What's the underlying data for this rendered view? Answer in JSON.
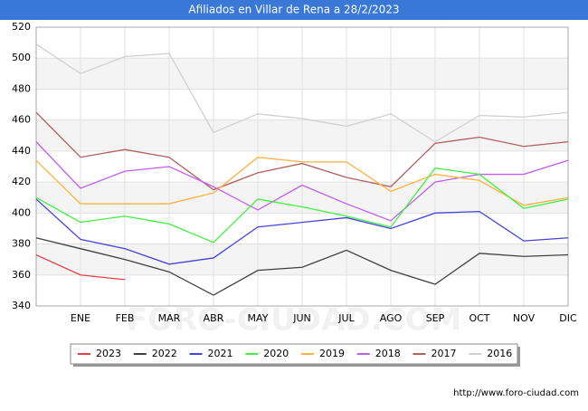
{
  "chart_data": {
    "type": "line",
    "title": "Afiliados en Villar de Rena a 28/2/2023",
    "categories": [
      null,
      "ENE",
      "FEB",
      "MAR",
      "ABR",
      "MAY",
      "JUN",
      "JUL",
      "AGO",
      "SEP",
      "OCT",
      "NOV",
      "DIC"
    ],
    "series": [
      {
        "name": "2023",
        "color": "#e84040",
        "values": [
          373,
          360,
          357,
          null,
          null,
          null,
          null,
          null,
          null,
          null,
          null,
          null,
          null
        ]
      },
      {
        "name": "2022",
        "color": "#404040",
        "values": [
          384,
          377,
          370,
          362,
          347,
          363,
          365,
          376,
          363,
          354,
          374,
          372,
          373
        ]
      },
      {
        "name": "2021",
        "color": "#4444dd",
        "values": [
          409,
          383,
          377,
          367,
          371,
          391,
          394,
          397,
          390,
          400,
          401,
          382,
          384
        ]
      },
      {
        "name": "2020",
        "color": "#44ee44",
        "values": [
          410,
          394,
          398,
          393,
          381,
          409,
          404,
          398,
          391,
          429,
          425,
          403,
          409
        ]
      },
      {
        "name": "2019",
        "color": "#ffb040",
        "values": [
          434,
          406,
          406,
          406,
          413,
          436,
          433,
          433,
          414,
          425,
          421,
          405,
          410
        ]
      },
      {
        "name": "2018",
        "color": "#c060ee",
        "values": [
          446,
          416,
          427,
          430,
          417,
          402,
          418,
          406,
          395,
          420,
          425,
          425,
          434
        ]
      },
      {
        "name": "2017",
        "color": "#b06060",
        "values": [
          465,
          436,
          441,
          436,
          415,
          426,
          432,
          423,
          417,
          445,
          449,
          443,
          446
        ]
      },
      {
        "name": "2016",
        "color": "#d0d0d0",
        "values": [
          509,
          490,
          501,
          503,
          452,
          464,
          461,
          456,
          464,
          446,
          463,
          462,
          465
        ]
      }
    ],
    "ylim": [
      340,
      520
    ],
    "yticks": [
      340,
      360,
      380,
      400,
      420,
      440,
      460,
      480,
      500,
      520
    ],
    "grid": true,
    "watermark": "FORO-CIUDAD.COM",
    "source": "http://www.foro-ciudad.com"
  }
}
